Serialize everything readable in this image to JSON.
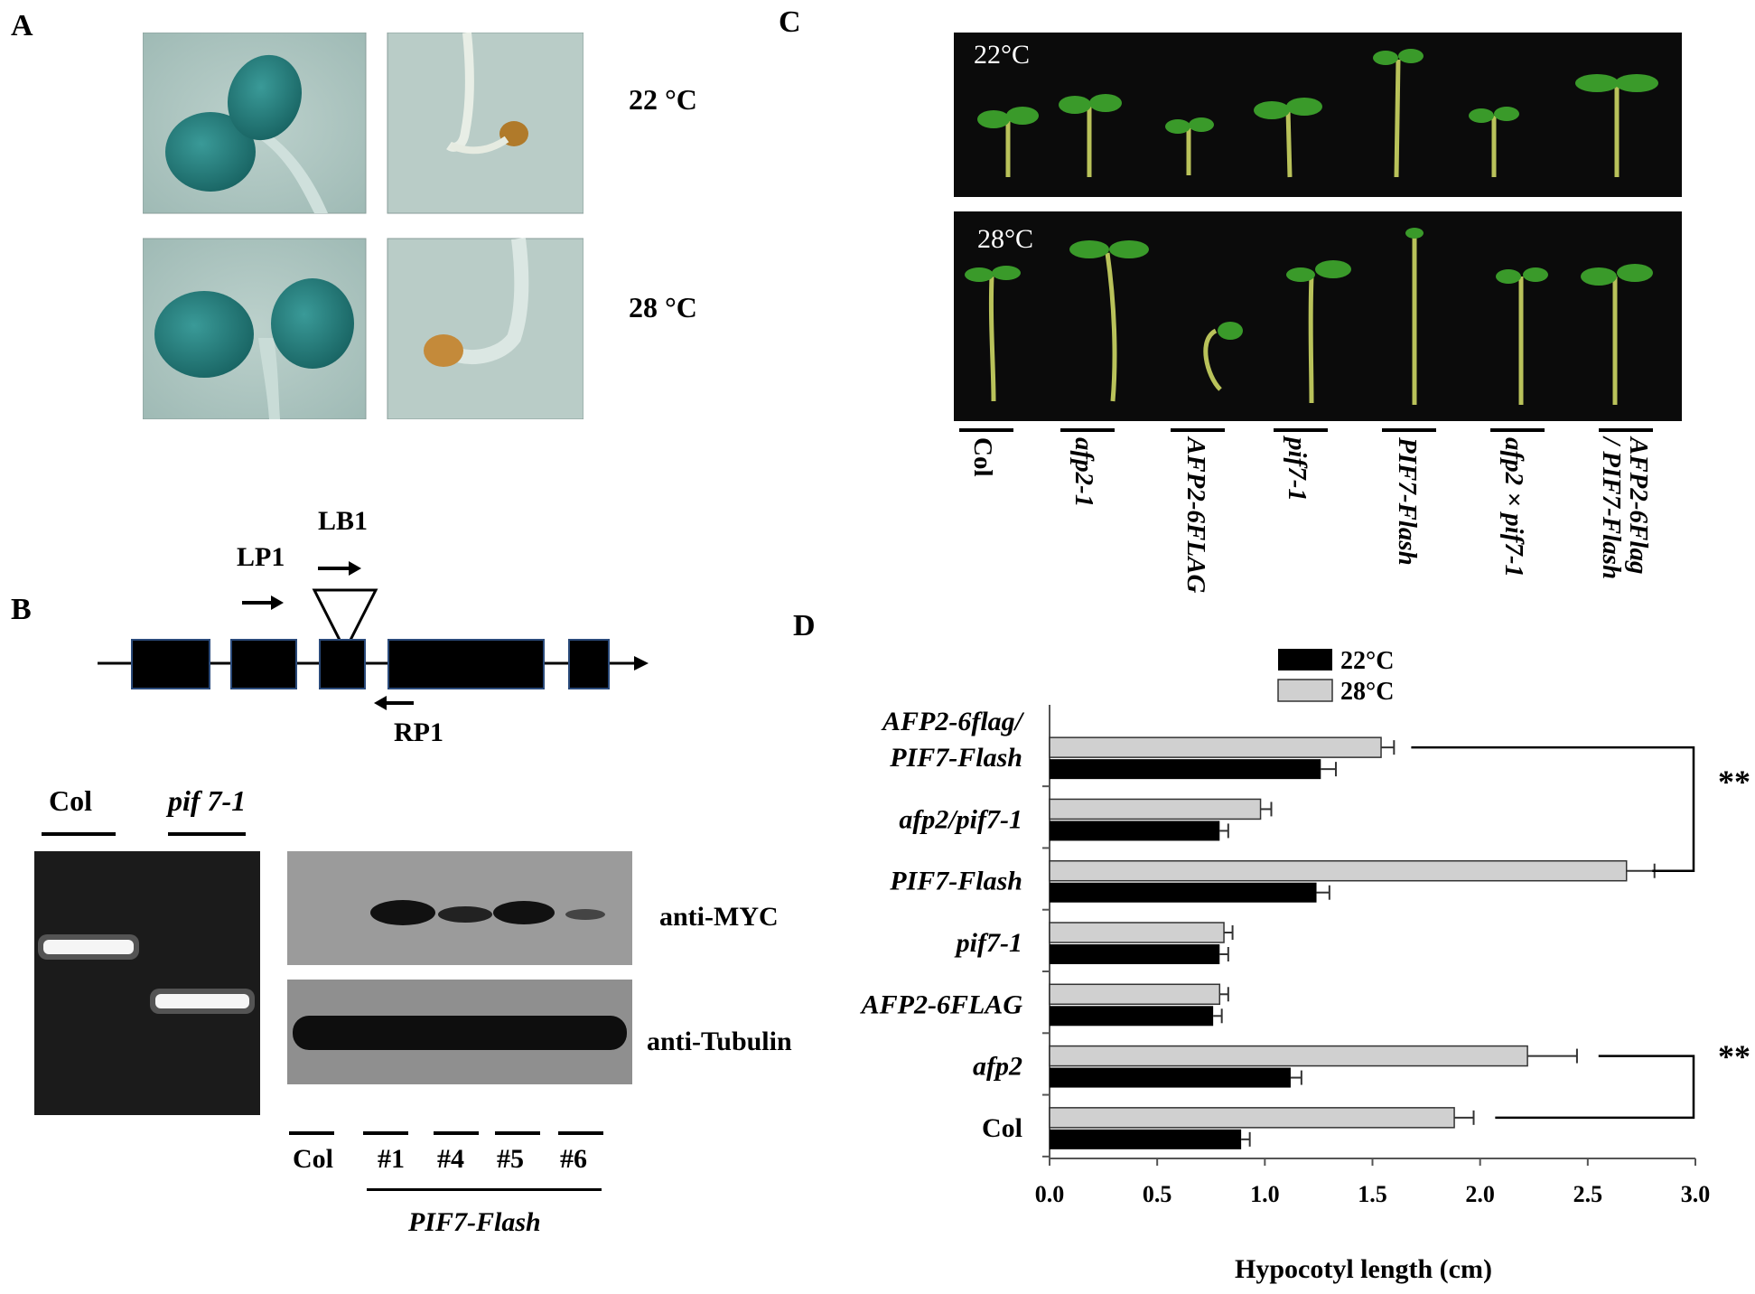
{
  "panelA": {
    "letter": "A",
    "temp_22": "22 °C",
    "temp_28": "28 °C"
  },
  "panelB": {
    "letter": "B",
    "primers": {
      "lp1": "LP1",
      "lb1": "LB1",
      "rp1": "RP1"
    },
    "gel_lanes": [
      "Col",
      "pif 7-1"
    ],
    "blot_labels": {
      "myc": "anti-MYC",
      "tubulin": "anti-Tubulin"
    },
    "blot_lanes": [
      "Col",
      "#1",
      "#4",
      "#5",
      "#6"
    ],
    "group_label": "PIF7-Flash"
  },
  "panelC": {
    "letter": "C",
    "temp_22": "22°C",
    "temp_28": "28°C",
    "genotypes": [
      "Col",
      "afp2-1",
      "AFP2-6FLAG",
      "pif7-1",
      "PIF7-Flash",
      "afp2 × pif7-1",
      "AFP2-6Flag",
      "/ PIF7-Flash"
    ]
  },
  "panelD": {
    "letter": "D",
    "significance": "**"
  },
  "chart_data": {
    "type": "bar",
    "orientation": "horizontal",
    "categories": [
      "AFP2-6flag/ PIF7-Flash",
      "afp2/pif7-1",
      "PIF7-Flash",
      "pif7-1",
      "AFP2-6FLAG",
      "afp2",
      "Col"
    ],
    "category_lines": [
      [
        "AFP2-6flag/",
        "PIF7-Flash"
      ],
      [
        "afp2/pif7-1"
      ],
      [
        "PIF7-Flash"
      ],
      [
        "pif7-1"
      ],
      [
        "AFP2-6FLAG"
      ],
      [
        "afp2"
      ],
      [
        "Col"
      ]
    ],
    "series": [
      {
        "name": "22°C",
        "color": "#000000",
        "values": [
          1.26,
          0.79,
          1.24,
          0.79,
          0.76,
          1.12,
          0.89
        ],
        "errors": [
          0.07,
          0.04,
          0.06,
          0.04,
          0.04,
          0.05,
          0.04
        ]
      },
      {
        "name": "28°C",
        "color": "#d0d0d0",
        "values": [
          1.54,
          0.98,
          2.68,
          0.81,
          0.79,
          2.22,
          1.88
        ],
        "errors": [
          0.06,
          0.05,
          0.13,
          0.04,
          0.04,
          0.23,
          0.09
        ]
      }
    ],
    "xlim": [
      0,
      3.0
    ],
    "xticks": [
      "0.0",
      "0.5",
      "1.0",
      "1.5",
      "2.0",
      "2.5",
      "3.0"
    ],
    "xlabel": "Hypocotyl length (cm)",
    "ylabel": "",
    "legend_position": "top-right"
  }
}
